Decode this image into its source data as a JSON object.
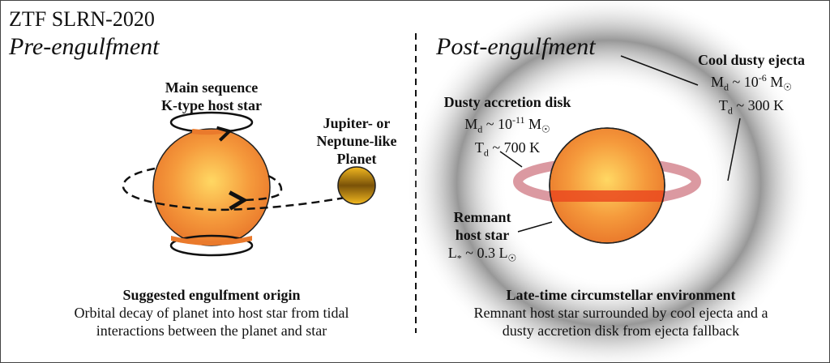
{
  "title": "ZTF SLRN-2020",
  "left": {
    "heading": "Pre-engulfment",
    "star_label": [
      "Main sequence",
      "K-type host star"
    ],
    "planet_label": [
      "Jupiter- or",
      "Neptune-like",
      "Planet"
    ],
    "caption_title": "Suggested engulfment origin",
    "caption_lines": [
      "Orbital decay of planet into host star from tidal",
      "interactions between the planet and star"
    ]
  },
  "right": {
    "heading": "Post-engulfment",
    "ejecta": {
      "title": "Cool dusty ejecta",
      "mass_exp": "-6",
      "temp": "300 K"
    },
    "disk": {
      "title": "Dusty accretion disk",
      "mass_exp": "-11",
      "temp": "700 K"
    },
    "remnant": {
      "title": [
        "Remnant",
        "host star"
      ],
      "lum": "0.3"
    },
    "caption_title": "Late-time circumstellar environment",
    "caption_lines": [
      "Remnant host star surrounded by cool ejecta and a",
      "dusty accretion disk from ejecta fallback"
    ]
  },
  "colors": {
    "star": "#ee8430",
    "star_core": "#ffd060",
    "planet": "#e0a010",
    "disk": "#d06070",
    "halo": "#9a9a9a"
  }
}
